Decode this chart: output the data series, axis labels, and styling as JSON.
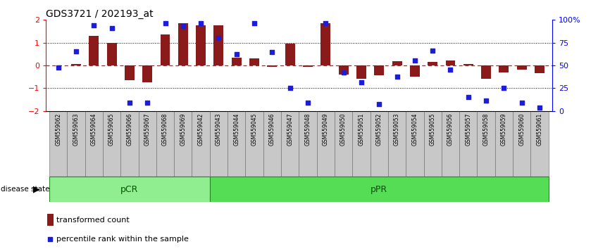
{
  "title": "GDS3721 / 202193_at",
  "samples": [
    "GSM559062",
    "GSM559063",
    "GSM559064",
    "GSM559065",
    "GSM559066",
    "GSM559067",
    "GSM559068",
    "GSM559069",
    "GSM559042",
    "GSM559043",
    "GSM559044",
    "GSM559045",
    "GSM559046",
    "GSM559047",
    "GSM559048",
    "GSM559049",
    "GSM559050",
    "GSM559051",
    "GSM559052",
    "GSM559053",
    "GSM559054",
    "GSM559055",
    "GSM559056",
    "GSM559057",
    "GSM559058",
    "GSM559059",
    "GSM559060",
    "GSM559061"
  ],
  "bar_values": [
    0.0,
    0.05,
    1.3,
    1.0,
    -0.65,
    -0.75,
    1.35,
    1.85,
    1.75,
    1.75,
    0.35,
    0.3,
    -0.05,
    0.95,
    -0.05,
    1.85,
    -0.4,
    -0.6,
    -0.45,
    0.18,
    -0.5,
    0.15,
    0.2,
    0.05,
    -0.6,
    -0.3,
    -0.2,
    -0.35
  ],
  "percentile_values": [
    -0.08,
    0.62,
    1.76,
    1.65,
    -1.65,
    -1.65,
    1.86,
    1.74,
    1.86,
    1.2,
    0.5,
    1.86,
    0.58,
    -1.0,
    -1.65,
    1.86,
    -0.3,
    -0.74,
    -1.7,
    -0.5,
    0.22,
    0.65,
    -0.2,
    -1.4,
    -1.54,
    -1.0,
    -1.65,
    -1.85
  ],
  "pcr_count": 9,
  "ppr_count": 19,
  "bar_color": "#8B1A1A",
  "dot_color": "#1C1CDD",
  "pcr_color": "#90EE90",
  "ppr_color": "#55DD55",
  "border_color": "#228B22",
  "ylim": [
    -2.0,
    2.0
  ],
  "yticks_left": [
    -2,
    -1,
    0,
    1,
    2
  ],
  "yticks_right_pct": [
    0,
    25,
    50,
    75,
    100
  ],
  "yticks_right_labels": [
    "0",
    "25",
    "50",
    "75",
    "100%"
  ],
  "bar_width": 0.55,
  "dot_size": 18,
  "label_fontsize": 5.5,
  "axis_fontsize": 8,
  "title_fontsize": 10
}
